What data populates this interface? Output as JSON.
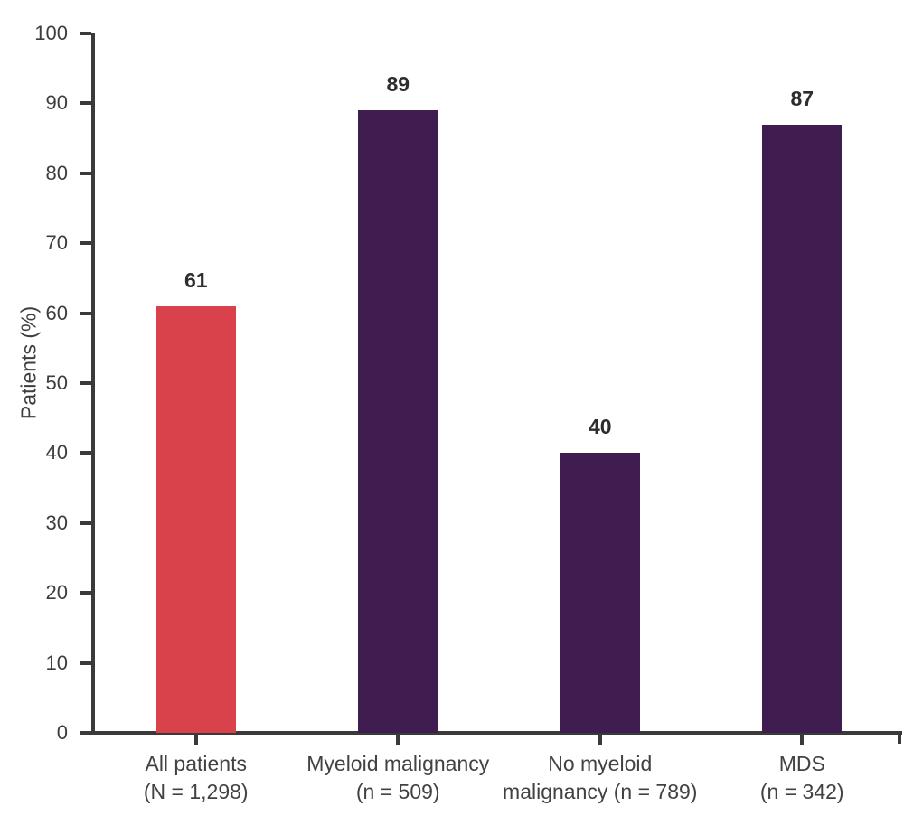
{
  "figure": {
    "background": "#ffffff"
  },
  "axes": {
    "color": "#3a3a3a",
    "tick_label_color": "#3d3d3d"
  },
  "chart_data": {
    "type": "bar",
    "title": "",
    "xlabel": "",
    "ylabel": "Patients (%)",
    "ylim": [
      0,
      100
    ],
    "ytick_step": 10,
    "yticks": [
      0,
      10,
      20,
      30,
      40,
      50,
      60,
      70,
      80,
      90,
      100
    ],
    "grid": false,
    "legend_position": "none",
    "categories": [
      "All patients (N = 1,298)",
      "Myeloid malignancy (n = 509)",
      "No myeloid malignancy (n = 789)",
      "MDS (n = 342)"
    ],
    "category_lines": [
      [
        "All patients",
        "(N = 1,298)"
      ],
      [
        "Myeloid malignancy",
        "(n = 509)"
      ],
      [
        "No myeloid",
        "malignancy (n = 789)"
      ],
      [
        "MDS",
        "(n = 342)"
      ]
    ],
    "values": [
      61,
      89,
      40,
      87
    ],
    "value_labels": [
      "61",
      "89",
      "40",
      "87"
    ],
    "bar_colors": [
      "#d9424a",
      "#401d50",
      "#401d50",
      "#401d50"
    ],
    "value_label_color": "#2d2d2d",
    "category_label_color": "#424242"
  }
}
